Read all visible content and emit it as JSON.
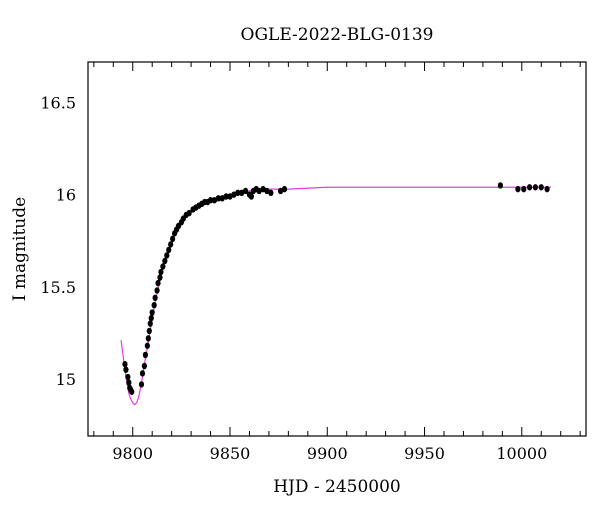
{
  "chart_data": {
    "type": "scatter",
    "title": "OGLE-2022-BLG-0139",
    "xlabel": "HJD - 2450000",
    "ylabel": "I magnitude",
    "xlim": [
      9777,
      10033
    ],
    "ylim": [
      16.72,
      14.69
    ],
    "y_inverted": true,
    "x_ticks": [
      9800,
      9850,
      9900,
      9950,
      10000
    ],
    "y_ticks": [
      15,
      15.5,
      16,
      16.5
    ],
    "x_tick_labels": [
      "9800",
      "9850",
      "9900",
      "9950",
      "10000"
    ],
    "y_tick_labels": [
      "15",
      "15.5",
      "16",
      "16.5"
    ],
    "grid": false,
    "legend": "none",
    "series": [
      {
        "kind": "points",
        "color": "#000000",
        "x": [
          9796.0,
          9796.5,
          9797.5,
          9798.0,
          9798.5,
          9799.0,
          9799.5,
          9804.5,
          9805.0,
          9806.0,
          9806.5,
          9807.5,
          9808.0,
          9808.5,
          9809.0,
          9809.5,
          9810.0,
          9811.0,
          9811.5,
          9812.5,
          9813.0,
          9814.0,
          9814.5,
          9815.5,
          9816.5,
          9817.5,
          9818.5,
          9819.5,
          9820.5,
          9821.5,
          9822.5,
          9823.5,
          9825.0,
          9826.0,
          9827.5,
          9829.0,
          9831.0,
          9832.5,
          9834.0,
          9835.5,
          9837.0,
          9838.5,
          9840.0,
          9842.0,
          9844.0,
          9846.0,
          9848.0,
          9850.0,
          9852.0,
          9854.0,
          9856.0,
          9858.0,
          9860.0,
          9861.0,
          9862.0,
          9863.5,
          9865.0,
          9867.0,
          9869.0,
          9871.0,
          9876.0,
          9878.0,
          9989.0,
          9998.0,
          10001.0,
          10004.0,
          10007.0,
          10010.0,
          10013.0
        ],
        "y": [
          15.08,
          15.05,
          15.01,
          14.98,
          14.95,
          14.94,
          14.93,
          14.97,
          15.03,
          15.07,
          15.13,
          15.18,
          15.22,
          15.26,
          15.3,
          15.33,
          15.36,
          15.4,
          15.44,
          15.48,
          15.52,
          15.55,
          15.58,
          15.61,
          15.64,
          15.67,
          15.7,
          15.73,
          15.76,
          15.79,
          15.81,
          15.83,
          15.85,
          15.87,
          15.89,
          15.9,
          15.92,
          15.93,
          15.94,
          15.95,
          15.96,
          15.96,
          15.97,
          15.97,
          15.98,
          15.98,
          15.99,
          15.99,
          16.0,
          16.01,
          16.01,
          16.02,
          16.0,
          15.99,
          16.02,
          16.03,
          16.02,
          16.03,
          16.02,
          16.01,
          16.02,
          16.03,
          16.05,
          16.03,
          16.03,
          16.04,
          16.04,
          16.04,
          16.03
        ]
      },
      {
        "kind": "model",
        "color": "#e040e0",
        "x": [
          9794,
          9795,
          9796,
          9797,
          9798,
          9799,
          9800,
          9801,
          9802,
          9803,
          9804,
          9805,
          9806,
          9807,
          9808,
          9810,
          9812,
          9814,
          9816,
          9818,
          9820,
          9822,
          9825,
          9828,
          9831,
          9835,
          9840,
          9845,
          9850,
          9860,
          9870,
          9880,
          9900,
          9950,
          10000,
          10015
        ],
        "y": [
          15.21,
          15.13,
          15.05,
          14.98,
          14.92,
          14.89,
          14.87,
          14.86,
          14.87,
          14.9,
          14.95,
          15.01,
          15.08,
          15.14,
          15.2,
          15.33,
          15.44,
          15.54,
          15.62,
          15.69,
          15.75,
          15.8,
          15.85,
          15.89,
          15.92,
          15.95,
          15.97,
          15.99,
          16.0,
          16.02,
          16.03,
          16.03,
          16.04,
          16.04,
          16.04,
          16.04
        ]
      }
    ]
  }
}
